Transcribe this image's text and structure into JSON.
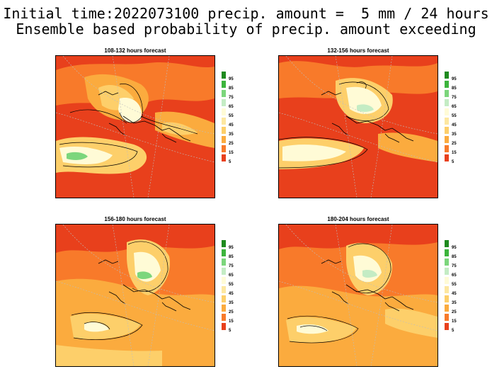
{
  "title_line1": "Initial time:2022073100 precip. amount =  5 mm / 24 hours",
  "title_line2": "Ensemble based probability of precip. amount exceeding",
  "colorbar": {
    "labels": [
      "95",
      "85",
      "75",
      "65",
      "55",
      "45",
      "35",
      "25",
      "15",
      "5"
    ],
    "colors": [
      "#1e8a1e",
      "#3cb43c",
      "#7cd67c",
      "#c4ecc4",
      "#fffbd6",
      "#fde7a0",
      "#fdcf6a",
      "#fbab3e",
      "#f87a2a",
      "#e8401c"
    ]
  },
  "panels": [
    {
      "title": "108-132 hours forecast"
    },
    {
      "title": "132-156 hours forecast"
    },
    {
      "title": "156-180 hours forecast"
    },
    {
      "title": "180-204 hours forecast"
    }
  ],
  "colors": {
    "base": "#e8401c",
    "orange": "#f87a2a",
    "light_orange": "#fbab3e",
    "yellow": "#fdcf6a",
    "pale_yellow": "#fde7a0",
    "cream": "#fffbd6",
    "pale_green": "#c4ecc4",
    "green": "#7cd67c"
  }
}
